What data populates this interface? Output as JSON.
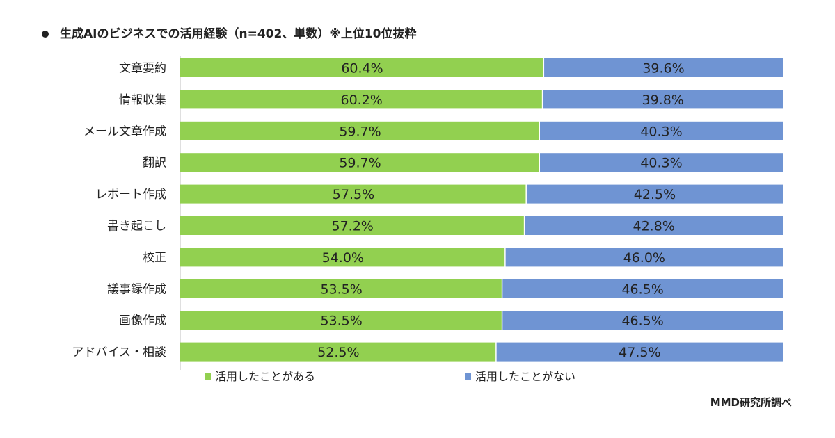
{
  "chart_data": {
    "type": "bar",
    "orientation": "horizontal",
    "stacked": true,
    "title": "生成AIのビジネスでの活用経験（n=402、単数）※上位10位抜粋",
    "categories": [
      "文章要約",
      "情報収集",
      "メール文章作成",
      "翻訳",
      "レポート作成",
      "書き起こし",
      "校正",
      "議事録作成",
      "画像作成",
      "アドバイス・相談"
    ],
    "series": [
      {
        "name": "活用したことがある",
        "color": "#92d050",
        "values": [
          60.4,
          60.2,
          59.7,
          59.7,
          57.5,
          57.2,
          54.0,
          53.5,
          53.5,
          52.5
        ],
        "labels": [
          "60.4%",
          "60.2%",
          "59.7%",
          "59.7%",
          "57.5%",
          "57.2%",
          "54.0%",
          "53.5%",
          "53.5%",
          "52.5%"
        ]
      },
      {
        "name": "活用したことがない",
        "color": "#6f94d3",
        "values": [
          39.6,
          39.8,
          40.3,
          40.3,
          42.5,
          42.8,
          46.0,
          46.5,
          46.5,
          47.5
        ],
        "labels": [
          "39.6%",
          "39.8%",
          "40.3%",
          "40.3%",
          "42.5%",
          "42.8%",
          "46.0%",
          "46.5%",
          "46.5%",
          "47.5%"
        ]
      }
    ],
    "xlim": [
      0,
      100
    ],
    "legend_position": "bottom"
  },
  "source": "MMD研究所調べ"
}
